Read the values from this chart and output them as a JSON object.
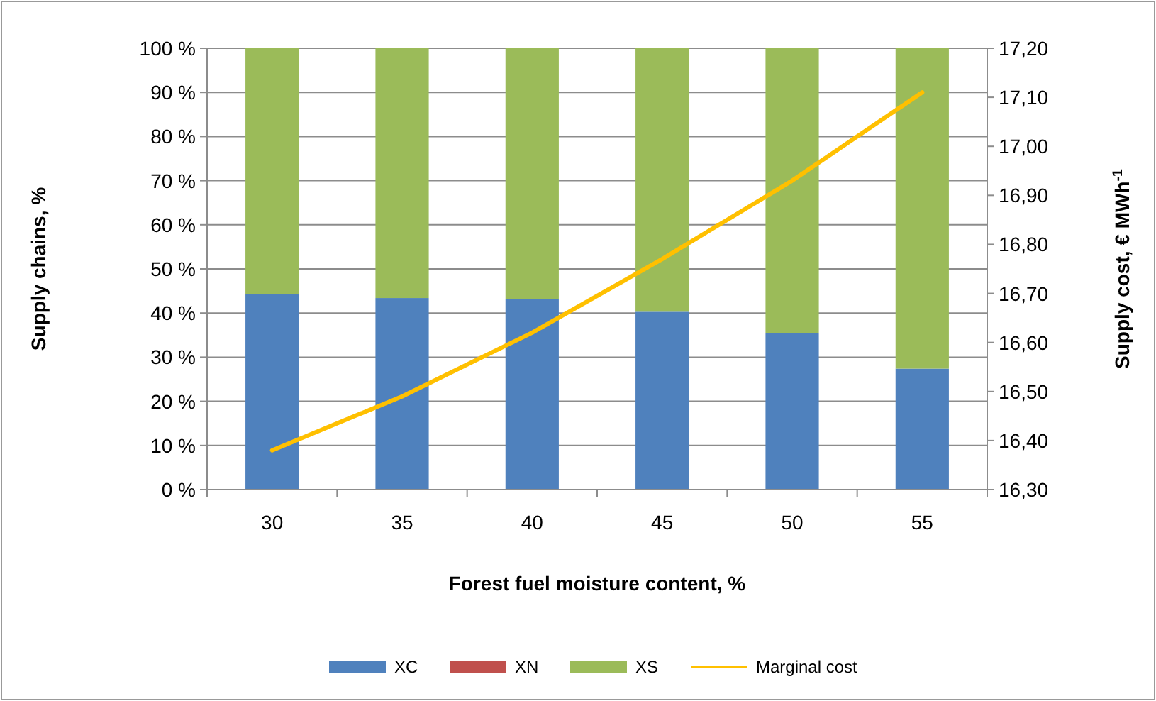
{
  "chart_data": {
    "type": "bar",
    "stacked": true,
    "xlabel": "Forest fuel moisture content, %",
    "ylabel": "Supply chains, %",
    "y2label": "Supply cost, € MWh$^{-1}$",
    "categories": [
      "30",
      "35",
      "40",
      "45",
      "50",
      "55"
    ],
    "series": [
      {
        "name": "XC",
        "color": "#4f81bd",
        "values": [
          44.3,
          43.4,
          43.1,
          40.3,
          35.4,
          27.4
        ]
      },
      {
        "name": "XN",
        "color": "#c0504d",
        "values": [
          0,
          0,
          0,
          0,
          0,
          0
        ]
      },
      {
        "name": "XS",
        "color": "#9bbb59",
        "values": [
          55.7,
          56.6,
          56.9,
          59.7,
          64.6,
          72.6
        ]
      },
      {
        "name": "Marginal cost",
        "type": "line",
        "axis": "y2",
        "color": "#ffc000",
        "values": [
          16.38,
          16.49,
          16.62,
          16.77,
          16.93,
          17.11
        ]
      }
    ],
    "ylim": [
      0,
      100
    ],
    "yticks": [
      {
        "value": 0,
        "label": "0 %"
      },
      {
        "value": 10,
        "label": "10 %"
      },
      {
        "value": 20,
        "label": "20 %"
      },
      {
        "value": 30,
        "label": "30 %"
      },
      {
        "value": 40,
        "label": "40 %"
      },
      {
        "value": 50,
        "label": "50 %"
      },
      {
        "value": 60,
        "label": "60 %"
      },
      {
        "value": 70,
        "label": "70 %"
      },
      {
        "value": 80,
        "label": "80 %"
      },
      {
        "value": 90,
        "label": "90 %"
      },
      {
        "value": 100,
        "label": "100 %"
      }
    ],
    "y2lim": [
      16.3,
      17.2
    ],
    "y2ticks": [
      {
        "value": 16.3,
        "label": "16,30"
      },
      {
        "value": 16.4,
        "label": "16,40"
      },
      {
        "value": 16.5,
        "label": "16,50"
      },
      {
        "value": 16.6,
        "label": "16,60"
      },
      {
        "value": 16.7,
        "label": "16,70"
      },
      {
        "value": 16.8,
        "label": "16,80"
      },
      {
        "value": 16.9,
        "label": "16,90"
      },
      {
        "value": 17.0,
        "label": "17,00"
      },
      {
        "value": 17.1,
        "label": "17,10"
      },
      {
        "value": 17.2,
        "label": "17,20"
      }
    ],
    "grid": "y",
    "legend": "bottom",
    "marker": "none",
    "line_style": "solid"
  }
}
